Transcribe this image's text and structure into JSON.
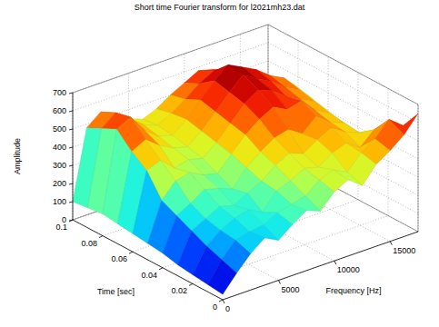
{
  "chart_data": {
    "type": "surface",
    "title": "Short time Fourier transform for l2021mh23.dat",
    "x_label": "Frequency [Hz]",
    "y_label": "Time [sec]",
    "z_label": "Amplitude",
    "x": [
      0,
      1250,
      2500,
      3750,
      5000,
      6250,
      7500,
      8750,
      10000,
      11250,
      12500,
      13750,
      15000,
      16250,
      17500
    ],
    "y": [
      0,
      0.01,
      0.02,
      0.03,
      0.04,
      0.05,
      0.06,
      0.07,
      0.08,
      0.09,
      0.1
    ],
    "values": [
      [
        30,
        120,
        200,
        260,
        220,
        280,
        330,
        300,
        380,
        420,
        360,
        450,
        500,
        560,
        650
      ],
      [
        40,
        150,
        230,
        250,
        260,
        300,
        320,
        340,
        400,
        430,
        390,
        470,
        520,
        600,
        540
      ],
      [
        50,
        180,
        240,
        280,
        300,
        260,
        350,
        380,
        420,
        400,
        450,
        480,
        430,
        500,
        420
      ],
      [
        60,
        220,
        260,
        300,
        280,
        320,
        360,
        420,
        460,
        430,
        480,
        520,
        470,
        440,
        380
      ],
      [
        80,
        260,
        300,
        350,
        330,
        300,
        390,
        450,
        500,
        520,
        470,
        540,
        480,
        450,
        360
      ],
      [
        90,
        300,
        380,
        400,
        360,
        340,
        420,
        500,
        560,
        600,
        560,
        580,
        500,
        460,
        380
      ],
      [
        100,
        420,
        450,
        380,
        400,
        380,
        440,
        520,
        600,
        650,
        620,
        560,
        520,
        480,
        400
      ],
      [
        110,
        480,
        520,
        460,
        420,
        400,
        460,
        540,
        620,
        690,
        640,
        600,
        540,
        500,
        420
      ],
      [
        120,
        560,
        600,
        500,
        440,
        420,
        480,
        560,
        640,
        700,
        660,
        620,
        560,
        520,
        440
      ],
      [
        110,
        520,
        580,
        520,
        460,
        430,
        470,
        520,
        580,
        620,
        600,
        560,
        520,
        480,
        420
      ],
      [
        100,
        480,
        540,
        500,
        450,
        420,
        450,
        500,
        540,
        580,
        560,
        520,
        480,
        440,
        400
      ]
    ],
    "xlim": [
      0,
      17500
    ],
    "ylim": [
      0,
      0.1
    ],
    "zlim": [
      0,
      700
    ],
    "xticks": [
      0,
      5000,
      10000,
      15000
    ],
    "yticks": [
      0,
      0.02,
      0.04,
      0.06,
      0.08,
      0.1
    ],
    "zticks": [
      0,
      100,
      200,
      300,
      400,
      500,
      600,
      700
    ],
    "grid": true
  }
}
